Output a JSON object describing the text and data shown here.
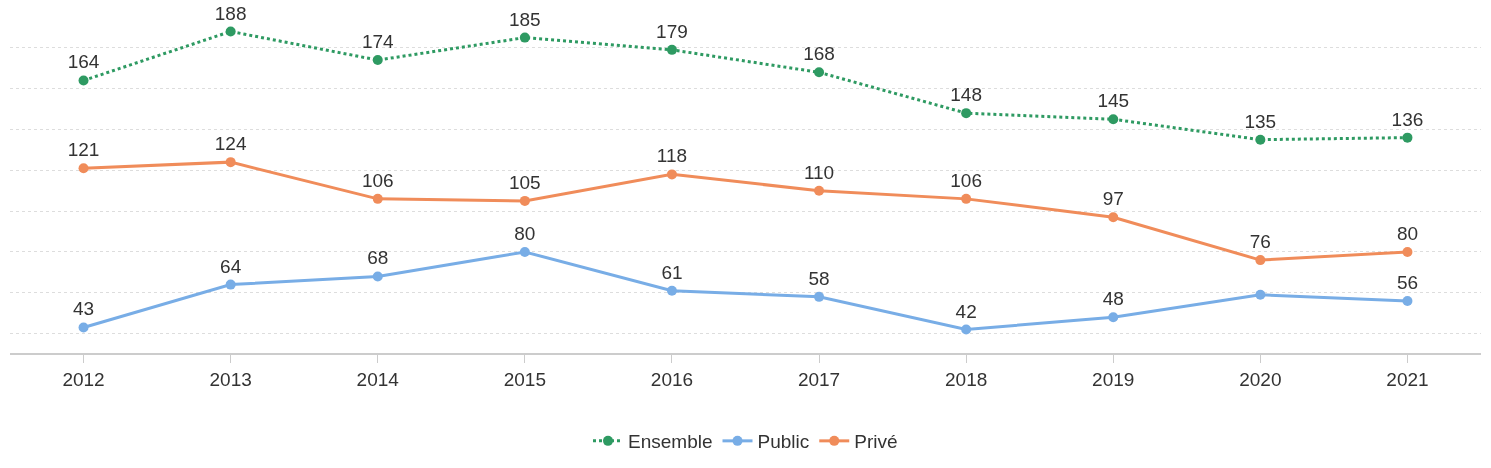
{
  "chart_data": {
    "type": "line",
    "categories": [
      "2012",
      "2013",
      "2014",
      "2015",
      "2016",
      "2017",
      "2018",
      "2019",
      "2020",
      "2021"
    ],
    "series": [
      {
        "name": "Ensemble",
        "color": "#2e9a62",
        "line_style": "dotted",
        "values": [
          164,
          188,
          174,
          185,
          179,
          168,
          148,
          145,
          135,
          136
        ],
        "value_labels": [
          "164",
          "188",
          "174",
          "185",
          "179",
          "168",
          "148",
          "145",
          "135",
          "136"
        ]
      },
      {
        "name": "Public",
        "color": "#78ade6",
        "values": [
          43,
          64,
          68,
          80,
          61,
          58,
          42,
          48,
          59,
          56
        ],
        "value_labels": [
          "43",
          "64",
          "68",
          "80",
          "61",
          "58",
          "42",
          "48",
          null,
          "56"
        ]
      },
      {
        "name": "Privé",
        "color": "#f08c5a",
        "values": [
          121,
          124,
          106,
          105,
          118,
          110,
          106,
          97,
          76,
          80
        ],
        "value_labels": [
          "121",
          "124",
          "106",
          "105",
          "118",
          "110",
          "106",
          "97",
          "76",
          "80"
        ]
      }
    ],
    "tick_labels": "x",
    "grid": "y",
    "legend": "bottom",
    "marker": "circle",
    "line_style": "solid"
  }
}
